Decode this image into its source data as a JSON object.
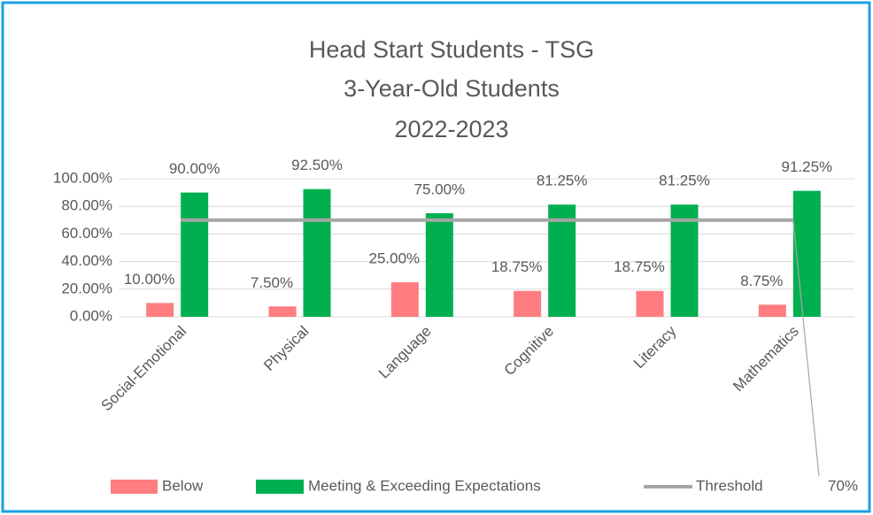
{
  "chart_data": {
    "type": "bar",
    "title": [
      "Head Start Students - TSG",
      "3-Year-Old Students",
      "2022-2023"
    ],
    "categories": [
      "Social-Emotional",
      "Physical",
      "Language",
      "Cognitive",
      "Literacy",
      "Mathematics"
    ],
    "series": [
      {
        "name": "Below",
        "color": "#ff7c80",
        "values": [
          10,
          7.5,
          25,
          18.75,
          18.75,
          8.75
        ],
        "value_labels": [
          "10.00%",
          "7.50%",
          "25.00%",
          "18.75%",
          "18.75%",
          "8.75%"
        ]
      },
      {
        "name": "Meeting & Exceeding Expectations",
        "color": "#00b050",
        "values": [
          90,
          92.5,
          75,
          81.25,
          81.25,
          91.25
        ],
        "value_labels": [
          "90.00%",
          "92.50%",
          "75.00%",
          "81.25%",
          "81.25%",
          "91.25%"
        ]
      }
    ],
    "threshold": {
      "name": "Threshold",
      "value": 70,
      "label": "70%",
      "color": "#a6a6a6"
    },
    "ylim": [
      0,
      100
    ],
    "yticks": [
      {
        "value": 0,
        "label": "0.00%"
      },
      {
        "value": 20,
        "label": "20.00%"
      },
      {
        "value": 40,
        "label": "40.00%"
      },
      {
        "value": 60,
        "label": "60.00%"
      },
      {
        "value": 80,
        "label": "80.00%"
      },
      {
        "value": 100,
        "label": "100.00%"
      }
    ],
    "grid": true
  }
}
